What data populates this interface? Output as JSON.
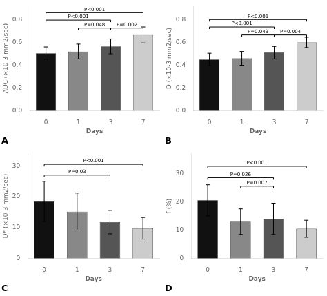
{
  "chart_data": [
    {
      "type": "bar",
      "title": "A",
      "xlabel": "Days",
      "ylabel": "ADC (×10-3 mm2/sec)",
      "categories": [
        "0",
        "1",
        "3",
        "7"
      ],
      "values": [
        0.505,
        0.52,
        0.565,
        0.665
      ],
      "errors": [
        0.055,
        0.065,
        0.065,
        0.07
      ],
      "colors": [
        "#111111",
        "#888888",
        "#555555",
        "#cccccc"
      ],
      "ylim": [
        0,
        0.92
      ],
      "yticks": [
        {
          "value": 0.0,
          "label": "0.0"
        },
        0.2,
        0.4,
        0.6,
        0.8
      ],
      "grid": false,
      "annotations": [
        {
          "from": "1",
          "to": "3",
          "y": 0.725,
          "text": "P=0.048"
        },
        {
          "from": "3",
          "to": "7",
          "y": 0.725,
          "text": "P=0.002"
        },
        {
          "from": "0",
          "to": "3",
          "y": 0.795,
          "text": "P<0.001"
        },
        {
          "from": "0",
          "to": "7",
          "y": 0.86,
          "text": "P<0.001"
        }
      ]
    },
    {
      "type": "bar",
      "title": "B",
      "xlabel": "Days",
      "ylabel": "D (×10-3 mm2/sec)",
      "categories": [
        "0",
        "1",
        "3",
        "7"
      ],
      "values": [
        0.45,
        0.46,
        0.51,
        0.6
      ],
      "errors": [
        0.055,
        0.06,
        0.055,
        0.045
      ],
      "colors": [
        "#111111",
        "#888888",
        "#555555",
        "#cccccc"
      ],
      "ylim": [
        0,
        0.92
      ],
      "yticks": [
        {
          "value": 0.0,
          "label": "0.0"
        },
        0.2,
        0.4,
        0.6,
        0.8
      ],
      "grid": false,
      "annotations": [
        {
          "from": "1",
          "to": "3",
          "y": 0.665,
          "text": "P=0.043"
        },
        {
          "from": "3",
          "to": "7",
          "y": 0.665,
          "text": "P=0.004"
        },
        {
          "from": "0",
          "to": "3",
          "y": 0.735,
          "text": "P<0.001"
        },
        {
          "from": "0",
          "to": "7",
          "y": 0.8,
          "text": "P<0.001"
        }
      ]
    },
    {
      "type": "bar",
      "title": "C",
      "xlabel": "Days",
      "ylabel": "D* (×10-3 mm2/sec)",
      "categories": [
        "0",
        "1",
        "3",
        "7"
      ],
      "values": [
        18.5,
        15.2,
        11.8,
        9.8
      ],
      "errors": [
        6.5,
        6.0,
        3.8,
        3.5
      ],
      "colors": [
        "#111111",
        "#888888",
        "#555555",
        "#cccccc"
      ],
      "ylim": [
        0,
        34
      ],
      "yticks": [
        0,
        10,
        20,
        30
      ],
      "grid": false,
      "annotations": [
        {
          "from": "0",
          "to": "3",
          "y": 27.0,
          "text": "P=0.03"
        },
        {
          "from": "0",
          "to": "7",
          "y": 30.5,
          "text": "P<0.001"
        }
      ]
    },
    {
      "type": "bar",
      "title": "D",
      "xlabel": "Days",
      "ylabel": "f (%)",
      "categories": [
        "0",
        "1",
        "3",
        "7"
      ],
      "values": [
        20.5,
        13.0,
        14.0,
        10.5
      ],
      "errors": [
        5.5,
        4.5,
        5.5,
        3.0
      ],
      "colors": [
        "#111111",
        "#888888",
        "#555555",
        "#cccccc"
      ],
      "ylim": [
        0,
        37
      ],
      "yticks": [
        0,
        10,
        20,
        30
      ],
      "grid": false,
      "annotations": [
        {
          "from": "1",
          "to": "3",
          "y": 25.5,
          "text": "P=0.007"
        },
        {
          "from": "0",
          "to": "3",
          "y": 28.5,
          "text": "P=0.026"
        },
        {
          "from": "0",
          "to": "7",
          "y": 32.5,
          "text": "P<0.001"
        }
      ]
    }
  ]
}
